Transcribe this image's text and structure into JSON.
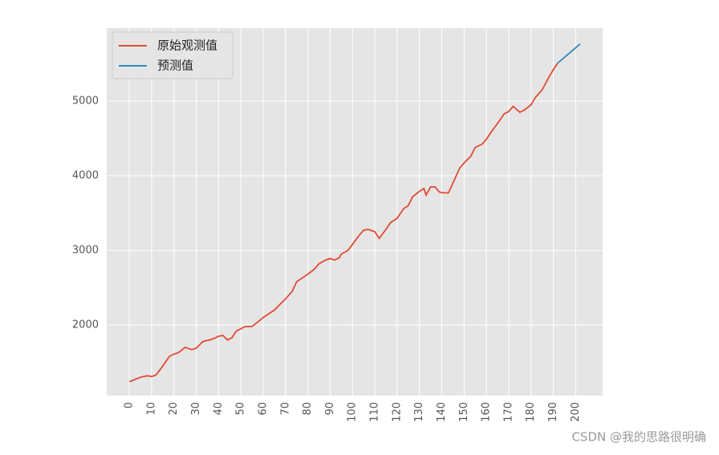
{
  "chart_data": {
    "type": "line",
    "series": [
      {
        "name": "原始观测值",
        "color": "#e24a33",
        "x": [
          0,
          5,
          8,
          10,
          12,
          15,
          18,
          20,
          22,
          25,
          28,
          30,
          33,
          36,
          38,
          40,
          42,
          44,
          46,
          48,
          50,
          52,
          55,
          58,
          60,
          63,
          65,
          68,
          70,
          73,
          75,
          78,
          80,
          83,
          85,
          88,
          90,
          92,
          94,
          95,
          98,
          100,
          103,
          105,
          107,
          110,
          112,
          115,
          117,
          120,
          123,
          125,
          127,
          130,
          132,
          133,
          135,
          137,
          139,
          141,
          143,
          145,
          148,
          150,
          153,
          155,
          158,
          160,
          163,
          165,
          168,
          170,
          172,
          175,
          177,
          180,
          182,
          185,
          188,
          190,
          192
        ],
        "values": [
          1240,
          1300,
          1320,
          1310,
          1330,
          1450,
          1580,
          1610,
          1630,
          1700,
          1670,
          1690,
          1780,
          1800,
          1820,
          1850,
          1860,
          1800,
          1830,
          1920,
          1950,
          1980,
          1980,
          2050,
          2100,
          2160,
          2200,
          2290,
          2350,
          2450,
          2580,
          2640,
          2680,
          2750,
          2820,
          2870,
          2890,
          2870,
          2900,
          2950,
          3000,
          3080,
          3200,
          3270,
          3280,
          3250,
          3160,
          3280,
          3370,
          3430,
          3560,
          3600,
          3720,
          3790,
          3830,
          3740,
          3850,
          3850,
          3780,
          3770,
          3770,
          3900,
          4100,
          4170,
          4260,
          4380,
          4420,
          4490,
          4620,
          4700,
          4830,
          4860,
          4930,
          4850,
          4880,
          4950,
          5050,
          5150,
          5320,
          5420,
          5510
        ]
      },
      {
        "name": "预测值",
        "color": "#348abd",
        "x": [
          192,
          202
        ],
        "values": [
          5510,
          5765
        ]
      }
    ],
    "xlim": [
      -10.1,
      212.1
    ],
    "ylim": [
      1054,
      5978
    ],
    "xticks": [
      0,
      10,
      20,
      30,
      40,
      50,
      60,
      70,
      80,
      90,
      100,
      110,
      120,
      130,
      140,
      150,
      160,
      170,
      180,
      190,
      200
    ],
    "yticks": [
      2000,
      3000,
      4000,
      5000
    ],
    "grid": true,
    "legend": "upper-left",
    "watermark": "CSDN @我的思路很明确"
  }
}
